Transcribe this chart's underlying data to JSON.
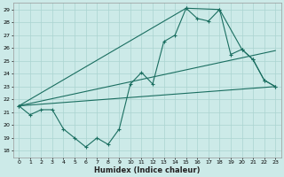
{
  "xlabel": "Humidex (Indice chaleur)",
  "bg_color": "#cceae8",
  "grid_color": "#aad4d0",
  "line_color": "#1a6e60",
  "xlim": [
    -0.5,
    23.5
  ],
  "ylim": [
    17.5,
    29.5
  ],
  "yticks": [
    18,
    19,
    20,
    21,
    22,
    23,
    24,
    25,
    26,
    27,
    28,
    29
  ],
  "xticks": [
    0,
    1,
    2,
    3,
    4,
    5,
    6,
    7,
    8,
    9,
    10,
    11,
    12,
    13,
    14,
    15,
    16,
    17,
    18,
    19,
    20,
    21,
    22,
    23
  ],
  "series_main": [
    21.5,
    20.8,
    21.2,
    21.2,
    19.7,
    19.0,
    18.3,
    19.0,
    18.5,
    19.7,
    23.2,
    24.1,
    23.2,
    26.5,
    27.0,
    29.1,
    28.3,
    28.1,
    29.0,
    25.5,
    25.9,
    25.1,
    23.5,
    23.0
  ],
  "trend_line1_x": [
    0,
    23
  ],
  "trend_line1_y": [
    21.5,
    25.8
  ],
  "trend_line2_x": [
    0,
    23
  ],
  "trend_line2_y": [
    21.5,
    23.0
  ],
  "upper_line_x": [
    0,
    15,
    18,
    20,
    21,
    22,
    23
  ],
  "upper_line_y": [
    21.5,
    29.1,
    29.0,
    25.9,
    25.1,
    23.5,
    23.0
  ],
  "ylabel_fontsize": 5,
  "xlabel_fontsize": 6,
  "tick_fontsize": 4.5
}
